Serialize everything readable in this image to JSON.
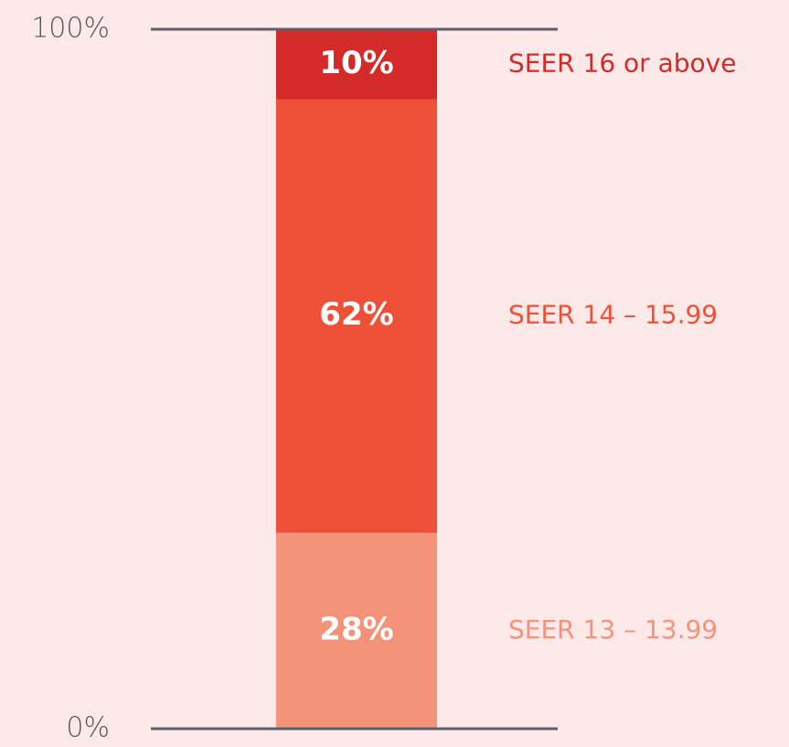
{
  "chart_data": {
    "type": "stacked_bar",
    "series": [
      {
        "name": "SEER 13 – 13.99",
        "color": "#f4937a",
        "values": [
          28
        ],
        "value_labels": [
          "28%"
        ]
      },
      {
        "name": "SEER 14 – 15.99",
        "color": "#ef5038",
        "values": [
          62
        ],
        "value_labels": [
          "62%"
        ]
      },
      {
        "name": "SEER 16 or above",
        "color": "#d42a2a",
        "values": [
          10
        ],
        "value_labels": [
          "10%"
        ]
      }
    ],
    "ylim": [
      0,
      100
    ],
    "yticks": [
      {
        "value": 0,
        "label": "0%"
      },
      {
        "value": 100,
        "label": "100%"
      }
    ]
  }
}
